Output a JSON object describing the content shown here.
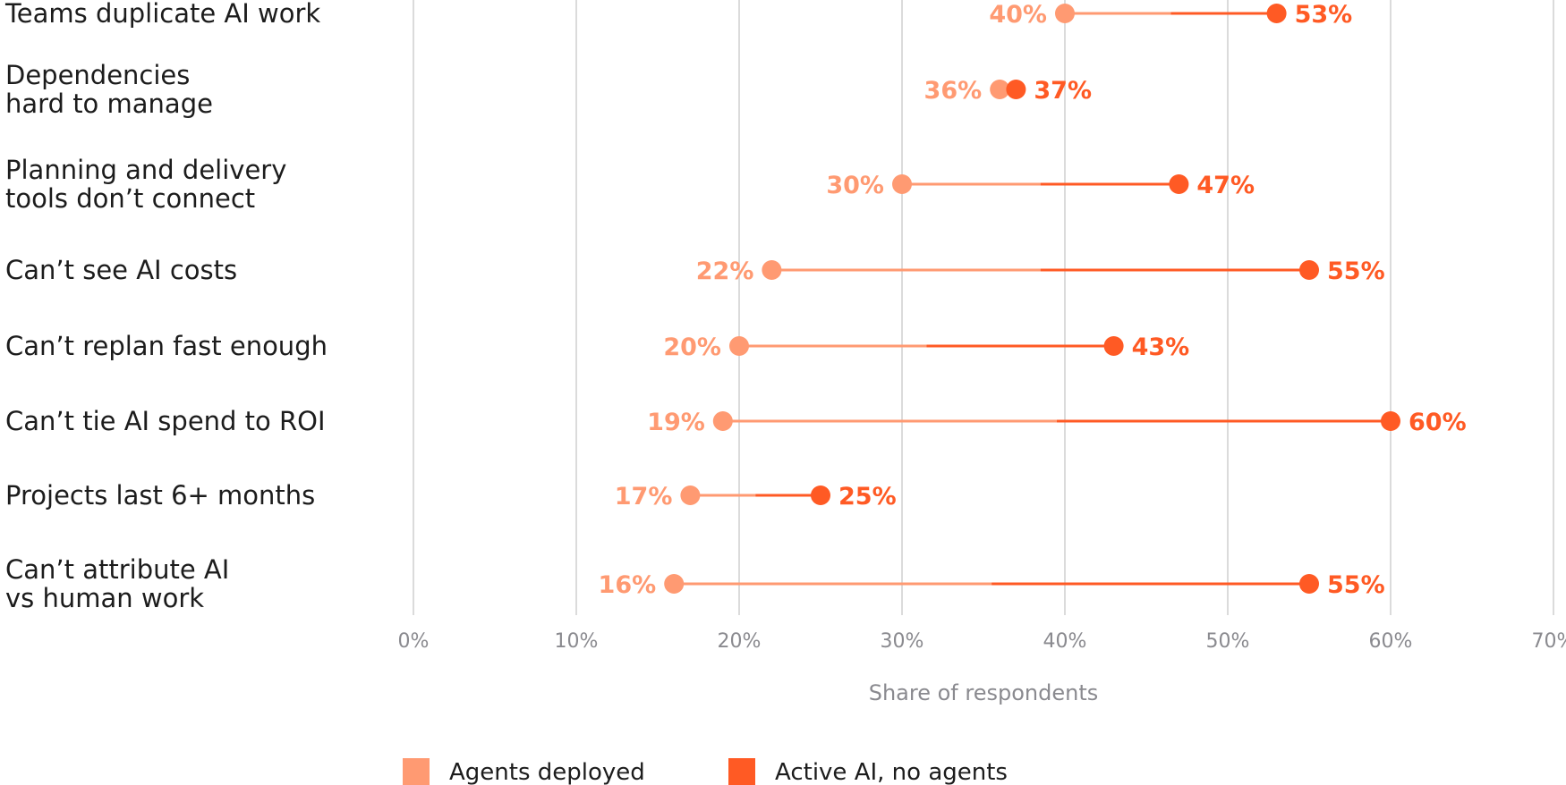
{
  "chart_data": {
    "type": "dumbbell",
    "xlabel": "Share of respondents",
    "xlim": [
      0,
      70
    ],
    "xticks": [
      0,
      10,
      20,
      30,
      40,
      50,
      60,
      70
    ],
    "xtick_labels": [
      "0%",
      "10%",
      "20%",
      "30%",
      "40%",
      "50%",
      "60%",
      "70%"
    ],
    "grid": "vertical",
    "legend_position": "bottom",
    "series": [
      {
        "name": "Agents deployed",
        "color": "#FF9A72"
      },
      {
        "name": "Active AI, no agents",
        "color": "#FF5A24"
      }
    ],
    "categories": [
      {
        "label": [
          "Teams duplicate AI work"
        ],
        "agents_deployed": 40,
        "agents_label": "40%",
        "active_ai_no_agents": 53,
        "active_label": "53%"
      },
      {
        "label": [
          "Dependencies",
          "hard to manage"
        ],
        "agents_deployed": 36,
        "agents_label": "36%",
        "active_ai_no_agents": 37,
        "active_label": "37%"
      },
      {
        "label": [
          "Planning and delivery",
          "tools don’t connect"
        ],
        "agents_deployed": 30,
        "agents_label": "30%",
        "active_ai_no_agents": 47,
        "active_label": "47%"
      },
      {
        "label": [
          "Can’t see AI costs"
        ],
        "agents_deployed": 22,
        "agents_label": "22%",
        "active_ai_no_agents": 55,
        "active_label": "55%"
      },
      {
        "label": [
          "Can’t replan fast enough"
        ],
        "agents_deployed": 20,
        "agents_label": "20%",
        "active_ai_no_agents": 43,
        "active_label": "43%"
      },
      {
        "label": [
          "Can’t tie AI spend to ROI"
        ],
        "agents_deployed": 19,
        "agents_label": "19%",
        "active_ai_no_agents": 60,
        "active_label": "60%"
      },
      {
        "label": [
          "Projects last 6+ months"
        ],
        "agents_deployed": 17,
        "agents_label": "17%",
        "active_ai_no_agents": 25,
        "active_label": "25%"
      },
      {
        "label": [
          "Can’t attribute AI",
          "vs human work"
        ],
        "agents_deployed": 16,
        "agents_label": "16%",
        "active_ai_no_agents": 55,
        "active_label": "55%"
      }
    ]
  }
}
